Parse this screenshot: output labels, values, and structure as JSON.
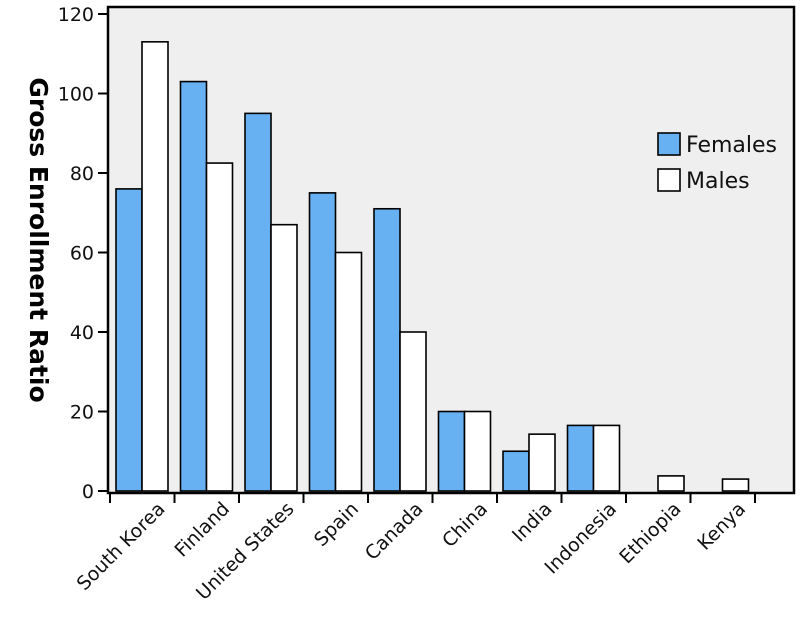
{
  "chart_data": {
    "type": "bar",
    "title": "",
    "xlabel": "",
    "ylabel": "Gross Enrollment Ratio",
    "ylim": [
      0,
      120
    ],
    "yticks": [
      0,
      20,
      40,
      60,
      80,
      100,
      120
    ],
    "categories": [
      "South Korea",
      "Finland",
      "United States",
      "Spain",
      "Canada",
      "China",
      "India",
      "Indonesia",
      "Ethiopia",
      "Kenya"
    ],
    "series": [
      {
        "name": "Females",
        "color": "#67b1f3",
        "values": [
          76,
          103,
          95,
          75,
          71,
          20,
          10,
          16.5,
          0,
          0
        ]
      },
      {
        "name": "Males",
        "color": "#ffffff",
        "values": [
          113,
          82.5,
          67,
          60,
          40,
          20,
          14.3,
          16.5,
          3.8,
          3
        ]
      }
    ],
    "grid": false,
    "legend_position": "right",
    "plot_background": "#efefef"
  }
}
